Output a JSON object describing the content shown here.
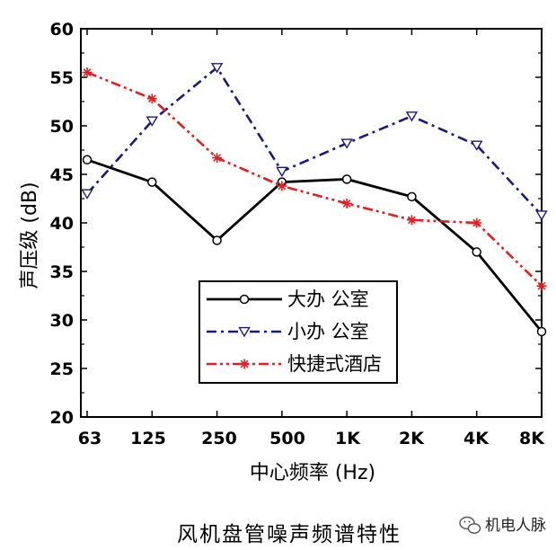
{
  "chart_data": {
    "type": "line",
    "categories": [
      "63",
      "125",
      "250",
      "500",
      "1K",
      "2K",
      "4K",
      "8K"
    ],
    "xlabel": "中心频率 (Hz)",
    "ylabel": "声压级 (dB)",
    "ylim": [
      20,
      60
    ],
    "yticks": [
      20,
      25,
      30,
      35,
      40,
      45,
      50,
      55,
      60
    ],
    "grid": false,
    "legend_position": "lower-center",
    "series": [
      {
        "name": "大办 公室",
        "values": [
          46.5,
          44.2,
          38.2,
          44.2,
          44.5,
          42.7,
          37.0,
          28.8
        ],
        "color": "#000000",
        "marker": "circle",
        "line_style": "solid"
      },
      {
        "name": "小办 公室",
        "values": [
          43.0,
          50.5,
          56.0,
          45.3,
          48.2,
          51.0,
          48.0,
          40.8
        ],
        "color": "#1a1a7a",
        "marker": "triangle-down",
        "line_style": "dash-dot"
      },
      {
        "name": "快捷式酒店",
        "values": [
          55.5,
          52.8,
          46.7,
          43.8,
          42.0,
          40.3,
          40.0,
          33.5
        ],
        "color": "#e02020",
        "marker": "asterisk",
        "line_style": "dash-dot-dot"
      }
    ]
  },
  "caption": "风机盘管噪声频谱特性",
  "watermark": {
    "text": "机电人脉",
    "icon": "wechat-icon"
  }
}
